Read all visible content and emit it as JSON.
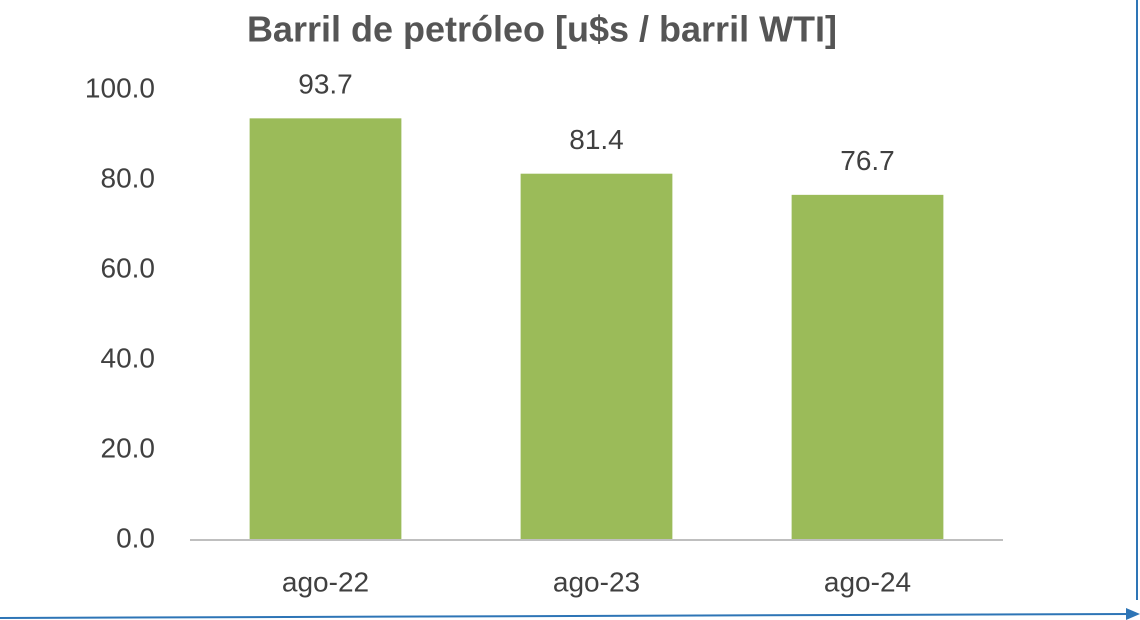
{
  "chart_data": {
    "type": "bar",
    "title": "Barril de petróleo [u$s / barril WTI]",
    "categories": [
      "ago-22",
      "ago-23",
      "ago-24"
    ],
    "values": [
      93.7,
      81.4,
      76.7
    ],
    "color": "#9bbb59",
    "ylim": [
      0,
      100
    ],
    "yticks": [
      {
        "value": 0,
        "label": "0.0"
      },
      {
        "value": 20,
        "label": "20.0"
      },
      {
        "value": 40,
        "label": "40.0"
      },
      {
        "value": 60,
        "label": "60.0"
      },
      {
        "value": 80,
        "label": "80.0"
      },
      {
        "value": 100,
        "label": "100.0"
      }
    ],
    "grid": false
  }
}
